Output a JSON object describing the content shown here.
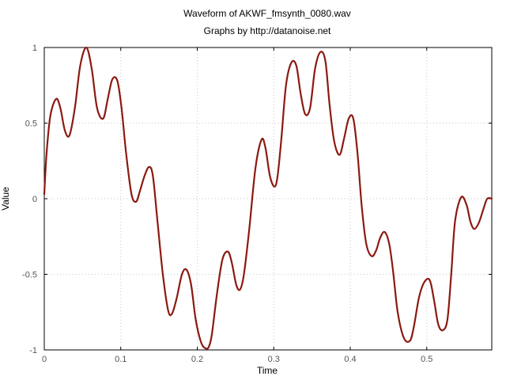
{
  "chart_data": {
    "type": "line",
    "title": "Waveform of AKWF_fmsynth_0080.wav",
    "subtitle": "Graphs by http://datanoise.net",
    "xlabel": "Time",
    "ylabel": "Value",
    "xlim": [
      0,
      0.585
    ],
    "ylim": [
      -1,
      1
    ],
    "xticks": [
      0,
      0.1,
      0.2,
      0.3,
      0.4,
      0.5
    ],
    "xtick_labels": [
      "0",
      "0.1",
      "0.2",
      "0.3",
      "0.4",
      "0.5"
    ],
    "yticks": [
      -1,
      -0.5,
      0,
      0.5,
      1
    ],
    "ytick_labels": [
      "-1",
      "-0.5",
      "0",
      "0.5",
      "1"
    ],
    "grid": true,
    "series_color": "#8b1a10",
    "series": [
      {
        "x": [
          0,
          0.003,
          0.008,
          0.0155,
          0.021,
          0.027,
          0.033,
          0.04,
          0.047,
          0.055,
          0.062,
          0.069,
          0.077,
          0.083,
          0.089,
          0.0955,
          0.101,
          0.107,
          0.114,
          0.12,
          0.125,
          0.131,
          0.137,
          0.142,
          0.148,
          0.155,
          0.162,
          0.167,
          0.173,
          0.18,
          0.186,
          0.192,
          0.198,
          0.205,
          0.211,
          0.215,
          0.219,
          0.226,
          0.233,
          0.24,
          0.245,
          0.251,
          0.256,
          0.261,
          0.268,
          0.276,
          0.284,
          0.289,
          0.295,
          0.301,
          0.305,
          0.31,
          0.316,
          0.323,
          0.3295,
          0.335,
          0.341,
          0.3475,
          0.354,
          0.361,
          0.3675,
          0.373,
          0.379,
          0.386,
          0.392,
          0.398,
          0.404,
          0.4095,
          0.415,
          0.421,
          0.428,
          0.434,
          0.439,
          0.445,
          0.451,
          0.456,
          0.462,
          0.47,
          0.478,
          0.483,
          0.49,
          0.497,
          0.504,
          0.5095,
          0.515,
          0.521,
          0.527,
          0.532,
          0.537,
          0.545,
          0.552,
          0.557,
          0.562,
          0.568,
          0.574,
          0.579,
          0.585
        ],
        "y": [
          0.03,
          0.3,
          0.55,
          0.66,
          0.6,
          0.45,
          0.42,
          0.6,
          0.88,
          1.0,
          0.86,
          0.6,
          0.53,
          0.66,
          0.79,
          0.78,
          0.6,
          0.3,
          0.03,
          -0.02,
          0.05,
          0.15,
          0.21,
          0.15,
          -0.15,
          -0.5,
          -0.74,
          -0.76,
          -0.66,
          -0.5,
          -0.47,
          -0.57,
          -0.8,
          -0.95,
          -0.99,
          -0.98,
          -0.9,
          -0.62,
          -0.4,
          -0.35,
          -0.42,
          -0.57,
          -0.6,
          -0.5,
          -0.2,
          0.2,
          0.39,
          0.34,
          0.15,
          0.08,
          0.15,
          0.4,
          0.75,
          0.9,
          0.88,
          0.7,
          0.56,
          0.6,
          0.86,
          0.97,
          0.91,
          0.62,
          0.38,
          0.29,
          0.4,
          0.53,
          0.53,
          0.3,
          -0.05,
          -0.3,
          -0.38,
          -0.34,
          -0.26,
          -0.22,
          -0.3,
          -0.48,
          -0.75,
          -0.92,
          -0.94,
          -0.85,
          -0.65,
          -0.55,
          -0.54,
          -0.67,
          -0.83,
          -0.87,
          -0.8,
          -0.5,
          -0.15,
          0.01,
          -0.04,
          -0.15,
          -0.2,
          -0.16,
          -0.07,
          0.0,
          0.0
        ]
      }
    ]
  }
}
